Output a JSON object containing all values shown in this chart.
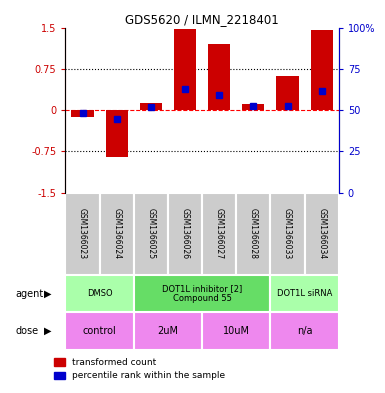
{
  "title": "GDS5620 / ILMN_2218401",
  "samples": [
    "GSM1366023",
    "GSM1366024",
    "GSM1366025",
    "GSM1366026",
    "GSM1366027",
    "GSM1366028",
    "GSM1366033",
    "GSM1366034"
  ],
  "red_values": [
    -0.13,
    -0.85,
    0.12,
    1.47,
    1.2,
    0.11,
    0.62,
    1.45
  ],
  "blue_values": [
    -0.06,
    -0.17,
    0.05,
    0.38,
    0.27,
    0.07,
    0.08,
    0.35
  ],
  "ylim": [
    -1.5,
    1.5
  ],
  "y_ticks_red": [
    -1.5,
    -0.75,
    0,
    0.75,
    1.5
  ],
  "y_ticks_blue_labels": [
    "0",
    "25",
    "50",
    "75",
    "100%"
  ],
  "bar_width": 0.65,
  "agent_groups": [
    {
      "label": "DMSO",
      "start": 0,
      "end": 2,
      "color": "#aaffaa"
    },
    {
      "label": "DOT1L inhibitor [2]\nCompound 55",
      "start": 2,
      "end": 6,
      "color": "#66dd66"
    },
    {
      "label": "DOT1L siRNA",
      "start": 6,
      "end": 8,
      "color": "#aaffaa"
    }
  ],
  "dose_groups": [
    {
      "label": "control",
      "start": 0,
      "end": 2,
      "color": "#ee88ee"
    },
    {
      "label": "2uM",
      "start": 2,
      "end": 4,
      "color": "#ee88ee"
    },
    {
      "label": "10uM",
      "start": 4,
      "end": 6,
      "color": "#ee88ee"
    },
    {
      "label": "n/a",
      "start": 6,
      "end": 8,
      "color": "#ee88ee"
    }
  ],
  "legend_red_label": "transformed count",
  "legend_blue_label": "percentile rank within the sample",
  "red_color": "#cc0000",
  "blue_color": "#0000cc",
  "sample_box_color": "#cccccc"
}
